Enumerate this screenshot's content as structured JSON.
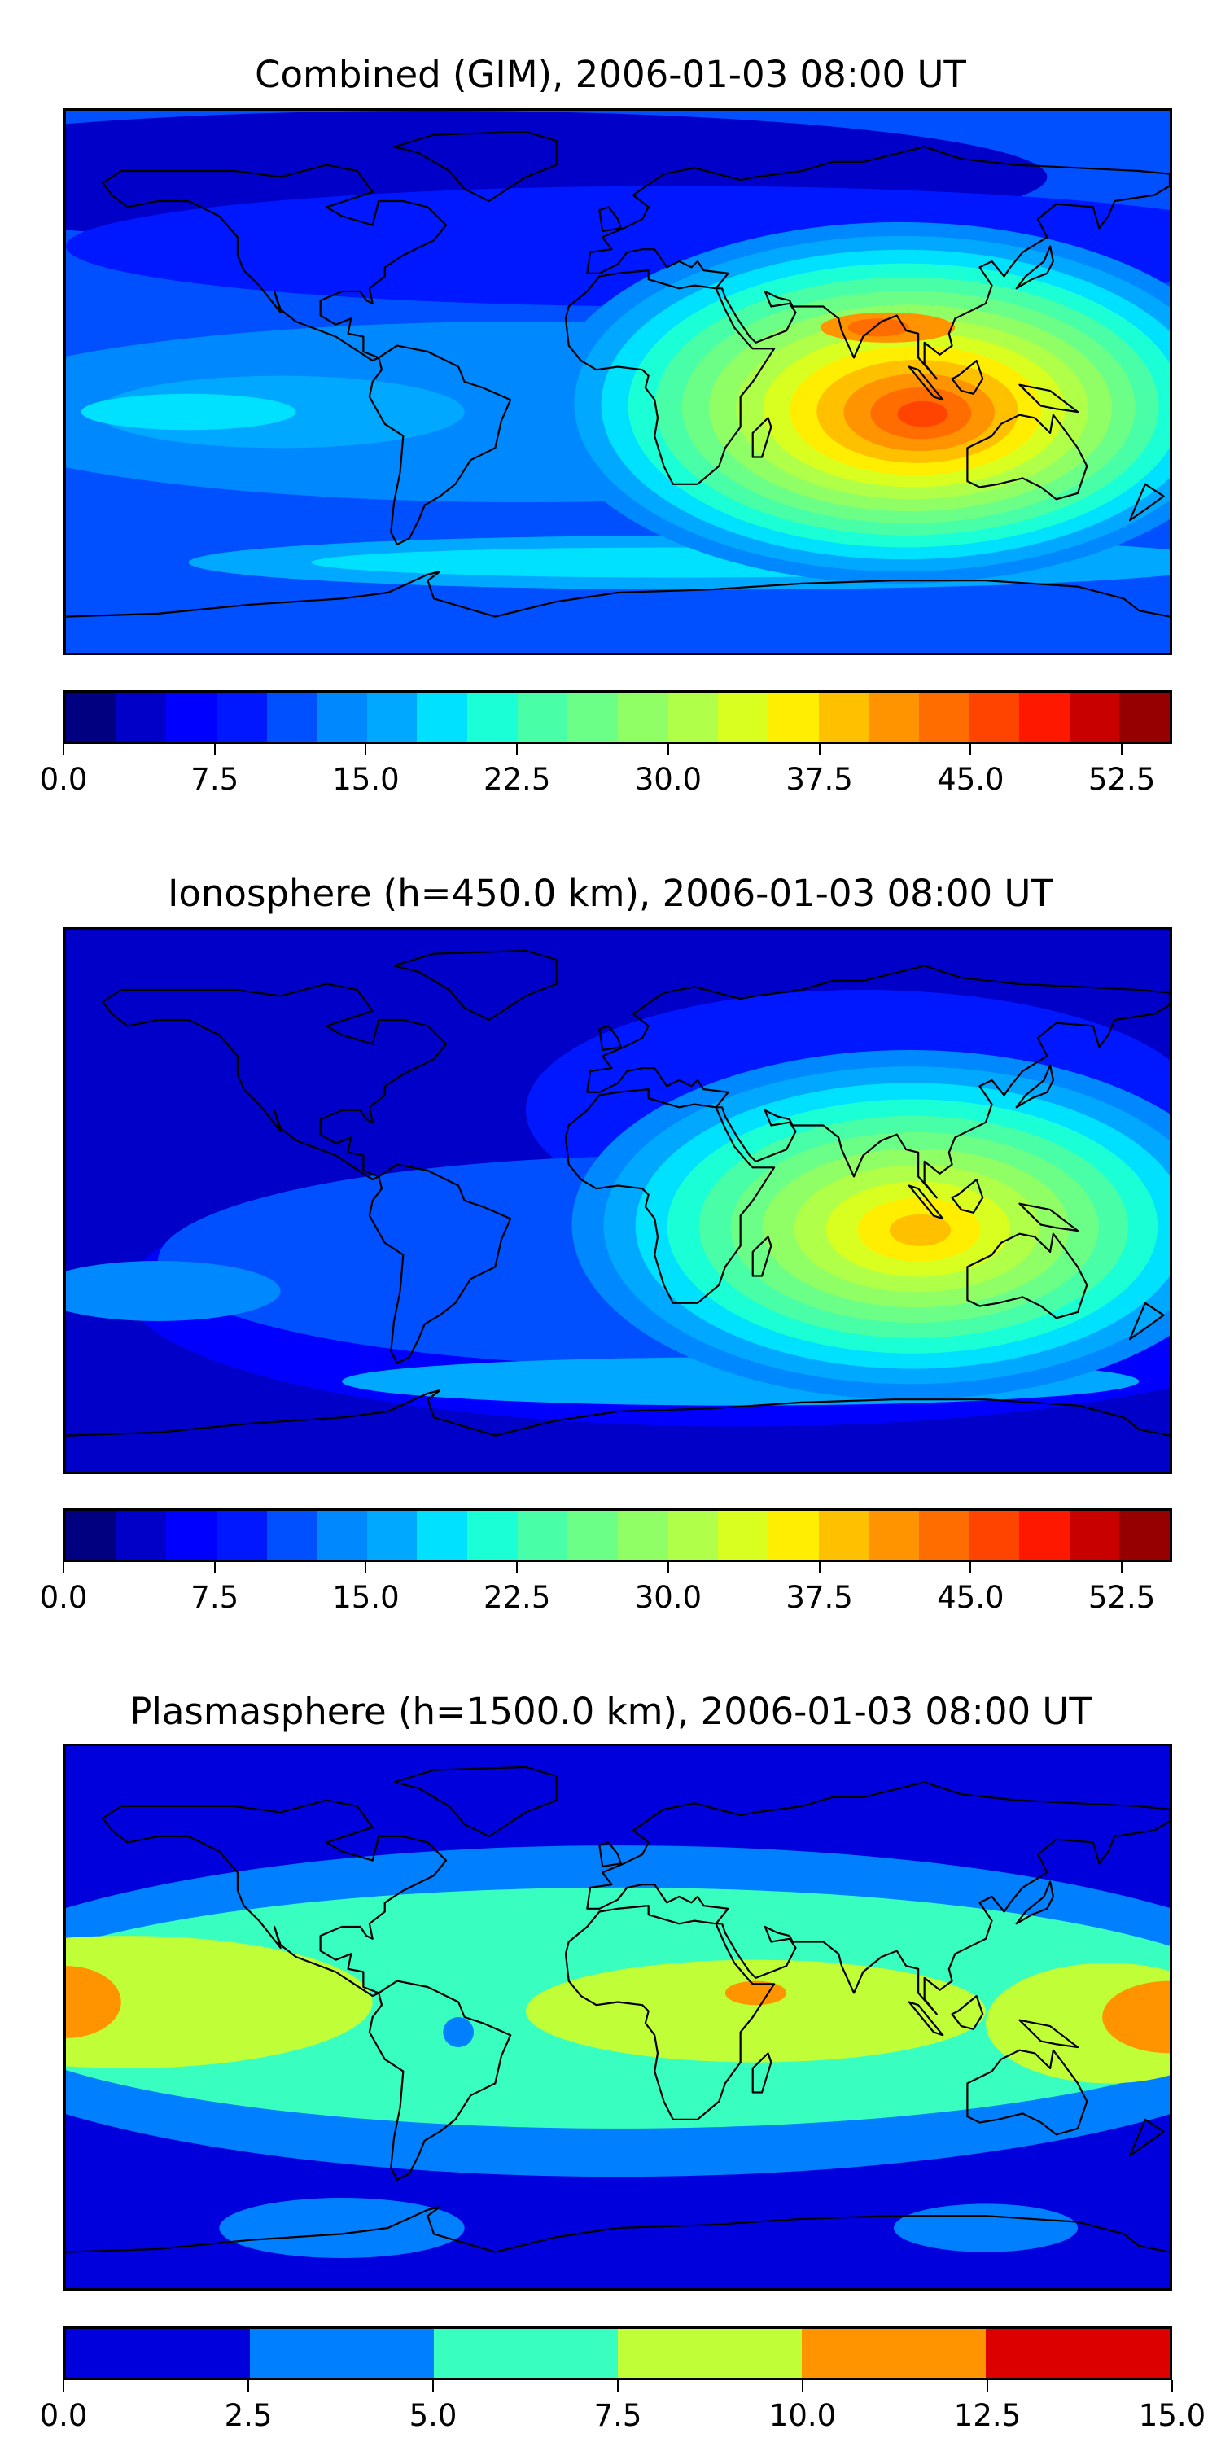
{
  "chart_data": [
    {
      "type": "heatmap",
      "subtype": "filled-contour world map",
      "title": "Combined (GIM), 2006-01-03 08:00 UT",
      "colorbar": {
        "range": [
          0,
          55
        ],
        "levels": [
          0,
          2.5,
          5,
          7.5,
          10,
          12.5,
          15,
          17.5,
          20,
          22.5,
          25,
          27.5,
          30,
          32.5,
          35,
          37.5,
          40,
          42.5,
          45,
          47.5,
          50,
          52.5,
          55
        ],
        "colors": [
          "#000080",
          "#0000c8",
          "#0000ff",
          "#0018ff",
          "#0050ff",
          "#0088ff",
          "#00a8ff",
          "#00e0ff",
          "#1affd6",
          "#48ffa8",
          "#6cff88",
          "#90ff66",
          "#b0ff48",
          "#d8ff20",
          "#ffee00",
          "#ffc000",
          "#ff9400",
          "#ff6c00",
          "#ff4400",
          "#ff1800",
          "#c80000",
          "#960000"
        ],
        "tick_labels": [
          "0.0",
          "7.5",
          "15.0",
          "22.5",
          "30.0",
          "37.5",
          "45.0",
          "52.5"
        ],
        "tick_values": [
          0,
          7.5,
          15,
          22.5,
          30,
          37.5,
          45,
          52.5
        ]
      },
      "peak": {
        "approx_value": 45,
        "lon": 97,
        "lat": -8
      }
    },
    {
      "type": "heatmap",
      "subtype": "filled-contour world map",
      "title": "Ionosphere  (h=450.0 km), 2006-01-03 08:00 UT",
      "colorbar": {
        "range": [
          0,
          55
        ],
        "levels": [
          0,
          2.5,
          5,
          7.5,
          10,
          12.5,
          15,
          17.5,
          20,
          22.5,
          25,
          27.5,
          30,
          32.5,
          35,
          37.5,
          40,
          42.5,
          45,
          47.5,
          50,
          52.5,
          55
        ],
        "colors": [
          "#000080",
          "#0000c8",
          "#0000ff",
          "#0018ff",
          "#0050ff",
          "#0088ff",
          "#00a8ff",
          "#00e0ff",
          "#1affd6",
          "#48ffa8",
          "#6cff88",
          "#90ff66",
          "#b0ff48",
          "#d8ff20",
          "#ffee00",
          "#ffc000",
          "#ff9400",
          "#ff6c00",
          "#ff4400",
          "#ff1800",
          "#c80000",
          "#960000"
        ],
        "tick_labels": [
          "0.0",
          "7.5",
          "15.0",
          "22.5",
          "30.0",
          "37.5",
          "45.0",
          "52.5"
        ],
        "tick_values": [
          0,
          7.5,
          15,
          22.5,
          30,
          37.5,
          45,
          52.5
        ]
      },
      "peak": {
        "approx_value": 40,
        "lon": 97,
        "lat": -8
      }
    },
    {
      "type": "heatmap",
      "subtype": "filled-contour world map",
      "title": "Plasmasphere (h=1500.0 km), 2006-01-03 08:00 UT",
      "colorbar": {
        "range": [
          0,
          15
        ],
        "levels": [
          0,
          2.5,
          5,
          7.5,
          10,
          12.5,
          15
        ],
        "colors": [
          "#0000dd",
          "#0080ff",
          "#38ffc0",
          "#c0ff38",
          "#ff9400",
          "#dd0000"
        ],
        "tick_labels": [
          "0.0",
          "2.5",
          "5.0",
          "7.5",
          "10.0",
          "12.5",
          "15.0"
        ],
        "tick_values": [
          0,
          2.5,
          5,
          7.5,
          10,
          12.5,
          15
        ]
      },
      "peak": {
        "approx_value": 11,
        "lon": 180,
        "lat": 5
      }
    }
  ]
}
